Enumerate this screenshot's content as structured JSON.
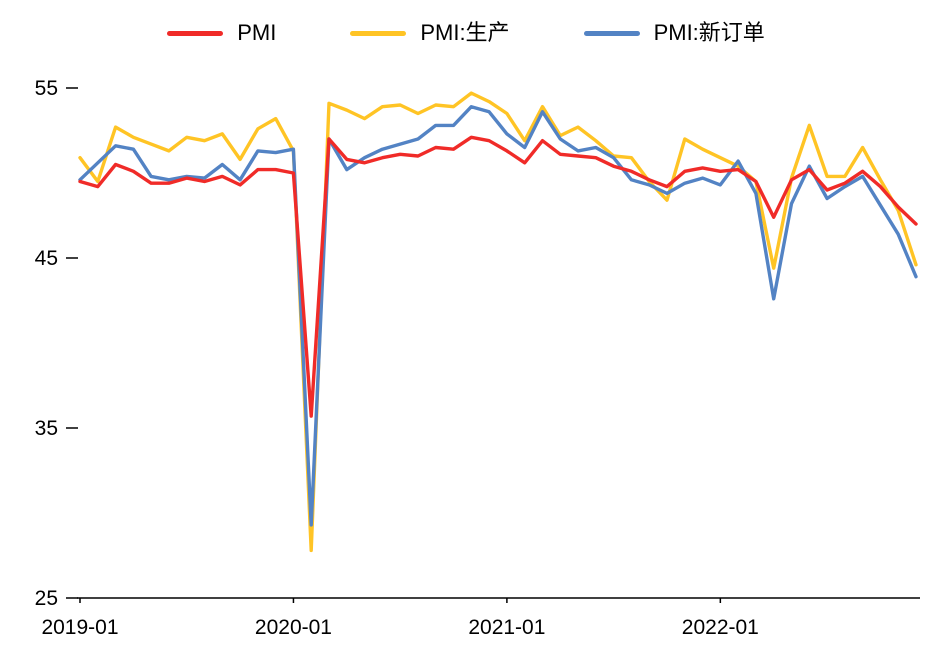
{
  "chart_data": {
    "type": "line",
    "title": "",
    "xlabel": "",
    "ylabel": "",
    "grid": false,
    "legend_position": "top",
    "axis_color": "#000000",
    "ylim": [
      25,
      55
    ],
    "yticks": [
      25,
      35,
      45,
      55
    ],
    "xticks": [
      {
        "index": 0,
        "label": "2019-01"
      },
      {
        "index": 12,
        "label": "2020-01"
      },
      {
        "index": 24,
        "label": "2021-01"
      },
      {
        "index": 36,
        "label": "2022-01"
      }
    ],
    "draw_order": [
      1,
      2,
      0
    ],
    "x": [
      "2019-01",
      "2019-02",
      "2019-03",
      "2019-04",
      "2019-05",
      "2019-06",
      "2019-07",
      "2019-08",
      "2019-09",
      "2019-10",
      "2019-11",
      "2019-12",
      "2020-01",
      "2020-02",
      "2020-03",
      "2020-04",
      "2020-05",
      "2020-06",
      "2020-07",
      "2020-08",
      "2020-09",
      "2020-10",
      "2020-11",
      "2020-12",
      "2021-01",
      "2021-02",
      "2021-03",
      "2021-04",
      "2021-05",
      "2021-06",
      "2021-07",
      "2021-08",
      "2021-09",
      "2021-10",
      "2021-11",
      "2021-12",
      "2022-01",
      "2022-02",
      "2022-03",
      "2022-04",
      "2022-05",
      "2022-06",
      "2022-07",
      "2022-08",
      "2022-09",
      "2022-10",
      "2022-11",
      "2022-12"
    ],
    "series": [
      {
        "name": "PMI",
        "color": "#F02B28",
        "values": [
          49.5,
          49.2,
          50.5,
          50.1,
          49.4,
          49.4,
          49.7,
          49.5,
          49.8,
          49.3,
          50.2,
          50.2,
          50.0,
          35.7,
          52.0,
          50.8,
          50.6,
          50.9,
          51.1,
          51.0,
          51.5,
          51.4,
          52.1,
          51.9,
          51.3,
          50.6,
          51.9,
          51.1,
          51.0,
          50.9,
          50.4,
          50.1,
          49.6,
          49.2,
          50.1,
          50.3,
          50.1,
          50.2,
          49.5,
          47.4,
          49.6,
          50.2,
          49.0,
          49.4,
          50.1,
          49.2,
          48.0,
          47.0
        ]
      },
      {
        "name": "PMI:生产",
        "color": "#FFC425",
        "values": [
          50.9,
          49.5,
          52.7,
          52.1,
          51.7,
          51.3,
          52.1,
          51.9,
          52.3,
          50.8,
          52.6,
          53.2,
          51.3,
          27.8,
          54.1,
          53.7,
          53.2,
          53.9,
          54.0,
          53.5,
          54.0,
          53.9,
          54.7,
          54.2,
          53.5,
          51.9,
          53.9,
          52.2,
          52.7,
          51.9,
          51.0,
          50.9,
          49.5,
          48.4,
          52.0,
          51.4,
          50.9,
          50.4,
          49.5,
          44.4,
          49.7,
          52.8,
          49.8,
          49.8,
          51.5,
          49.6,
          47.8,
          44.6
        ]
      },
      {
        "name": "PMI:新订单",
        "color": "#5383C4",
        "values": [
          49.6,
          50.6,
          51.6,
          51.4,
          49.8,
          49.6,
          49.8,
          49.7,
          50.5,
          49.6,
          51.3,
          51.2,
          51.4,
          29.3,
          52.0,
          50.2,
          50.9,
          51.4,
          51.7,
          52.0,
          52.8,
          52.8,
          53.9,
          53.6,
          52.3,
          51.5,
          53.6,
          52.0,
          51.3,
          51.5,
          50.9,
          49.6,
          49.3,
          48.8,
          49.4,
          49.7,
          49.3,
          50.7,
          48.8,
          42.6,
          48.2,
          50.4,
          48.5,
          49.2,
          49.8,
          48.1,
          46.4,
          43.9
        ]
      }
    ]
  }
}
